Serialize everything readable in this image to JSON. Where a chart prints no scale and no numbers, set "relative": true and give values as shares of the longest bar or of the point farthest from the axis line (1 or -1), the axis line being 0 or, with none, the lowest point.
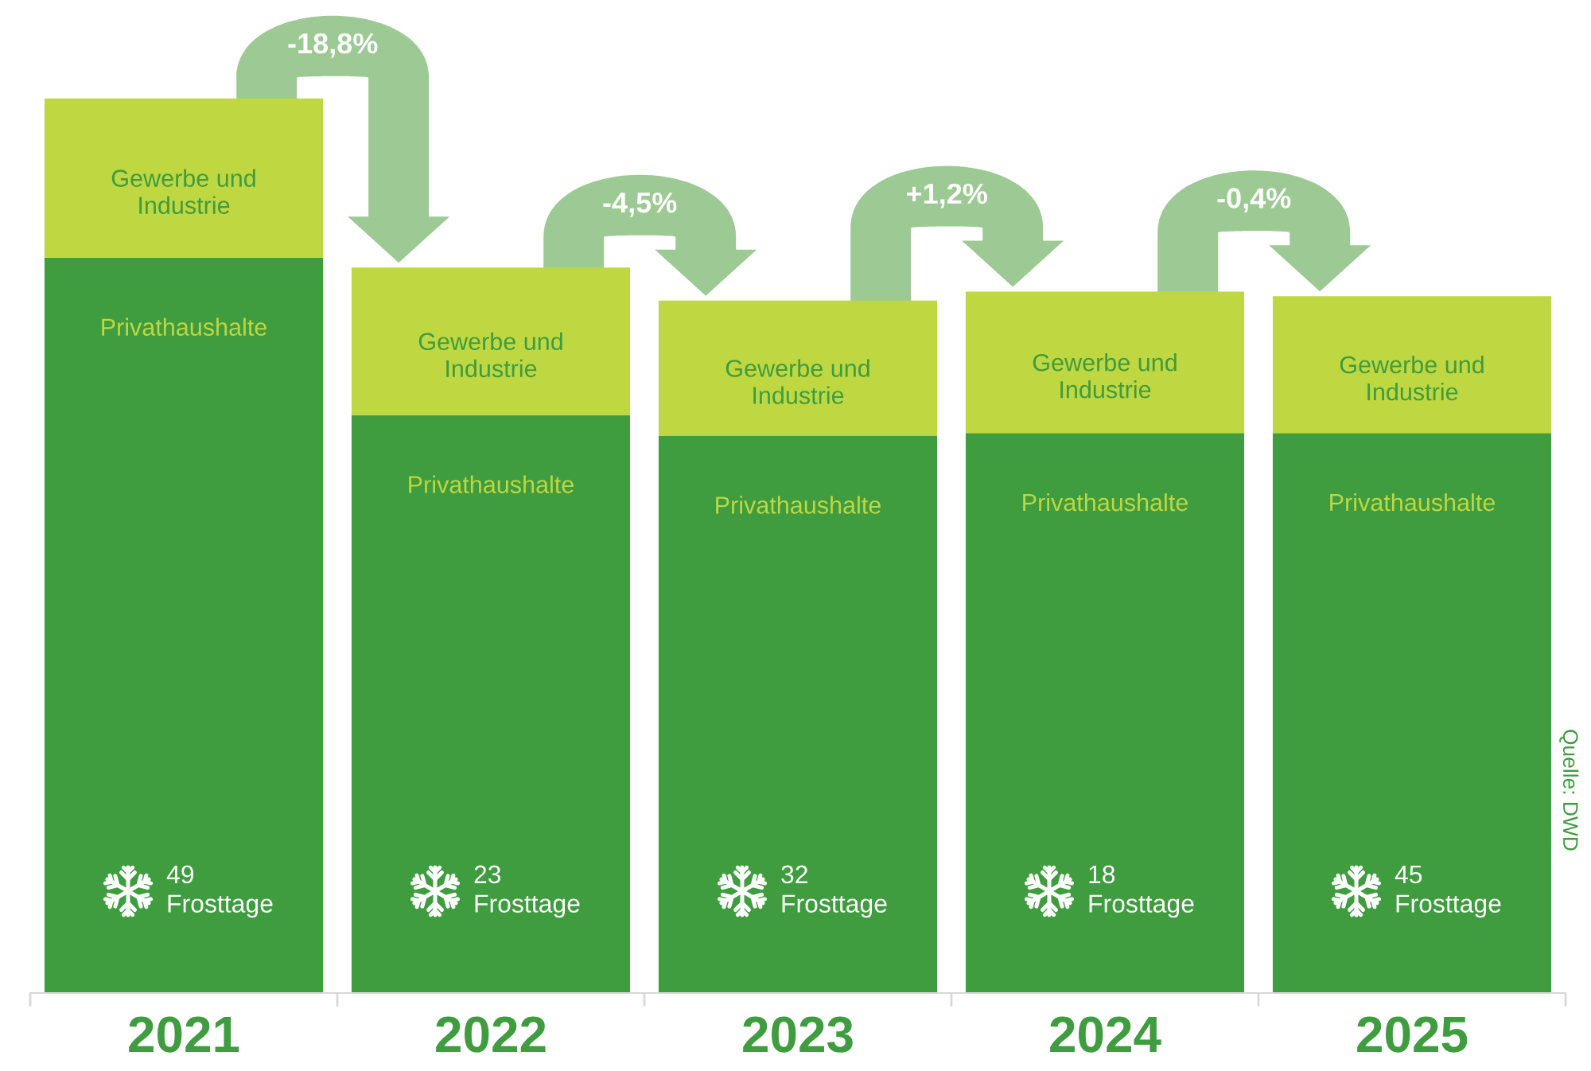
{
  "chart_data": {
    "type": "bar",
    "stacked": true,
    "relative": true,
    "categories": [
      "2021",
      "2022",
      "2023",
      "2024",
      "2025"
    ],
    "series": [
      {
        "name": "Privathaushalte",
        "color": "#3f9c3f",
        "values": [
          0.822,
          0.646,
          0.623,
          0.626,
          0.626
        ]
      },
      {
        "name": "Gewerbe und Industrie",
        "color": "#bfd740",
        "values": [
          0.178,
          0.165,
          0.151,
          0.158,
          0.153
        ]
      }
    ],
    "annotations": [
      "-18,8%",
      "-4,5%",
      "+1,2%",
      "-0,4%",
      "49 Frosttage",
      "23 Frosttage",
      "32 Frosttage",
      "18 Frosttage",
      "45 Frosttage",
      "Quelle: DWD"
    ]
  }
}
